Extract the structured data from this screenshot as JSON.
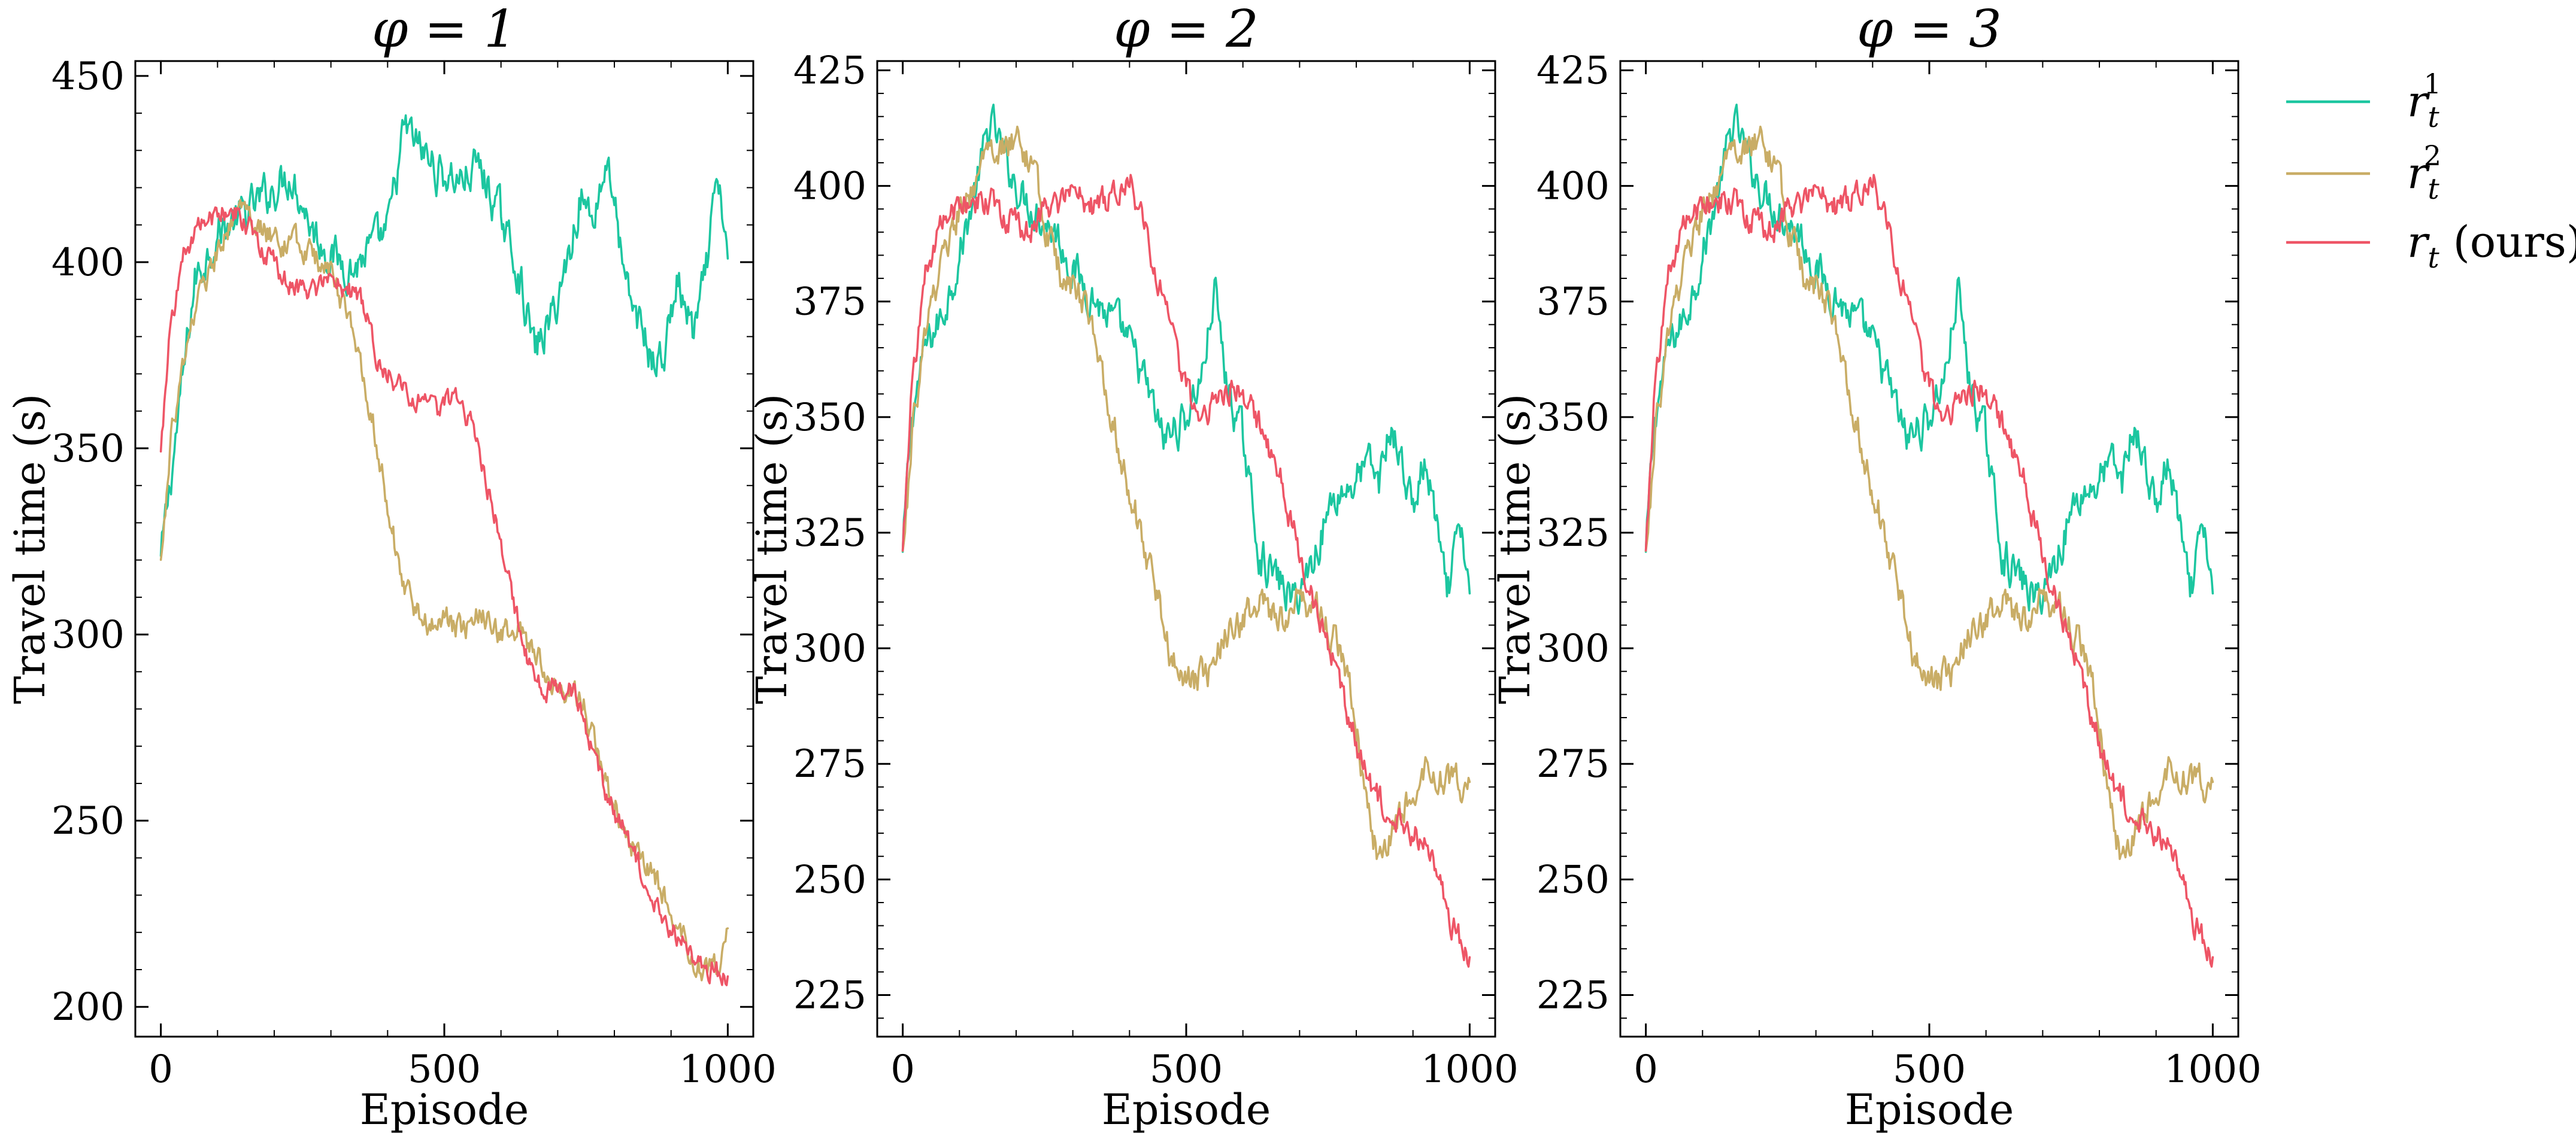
{
  "chart_data": [
    {
      "type": "line",
      "title": "φ = 1",
      "xlabel": "Episode",
      "ylabel": "Travel time (s)",
      "xlim": [
        -45,
        1045
      ],
      "ylim": [
        192,
        454
      ],
      "xticks": [
        0,
        500,
        1000
      ],
      "yticks": [
        200,
        250,
        300,
        350,
        400,
        450
      ],
      "x_minor_step": 100,
      "y_minor_step": 10,
      "series": [
        {
          "name": "r_t^1",
          "noise": 4.5,
          "x": [
            0,
            20,
            60,
            100,
            150,
            200,
            230,
            270,
            300,
            320,
            340,
            360,
            400,
            430,
            460,
            490,
            530,
            560,
            600,
            630,
            660,
            690,
            720,
            740,
            760,
            790,
            820,
            850,
            870,
            890,
            910,
            940,
            960,
            980,
            1000
          ],
          "values": [
            320,
            345,
            395,
            408,
            413,
            420,
            424,
            408,
            402,
            400,
            398,
            402,
            408,
            436,
            430,
            424,
            422,
            426,
            412,
            398,
            376,
            385,
            402,
            418,
            412,
            428,
            392,
            382,
            372,
            376,
            395,
            380,
            395,
            420,
            405
          ]
        },
        {
          "name": "r_t^2",
          "noise": 3,
          "x": [
            0,
            20,
            60,
            100,
            130,
            160,
            200,
            250,
            300,
            330,
            360,
            390,
            420,
            450,
            480,
            500,
            530,
            560,
            600,
            640,
            660,
            690,
            720,
            750,
            780,
            810,
            840,
            870,
            900,
            930,
            960,
            980,
            1000
          ],
          "values": [
            319,
            355,
            388,
            403,
            414,
            410,
            406,
            404,
            397,
            385,
            368,
            345,
            318,
            305,
            303,
            304,
            301,
            305,
            300,
            300,
            295,
            286,
            285,
            280,
            260,
            252,
            240,
            235,
            225,
            215,
            210,
            210,
            220
          ]
        },
        {
          "name": "r_t (ours)",
          "noise": 2.5,
          "x": [
            0,
            15,
            40,
            70,
            100,
            130,
            160,
            190,
            220,
            260,
            300,
            330,
            360,
            380,
            400,
            430,
            460,
            490,
            520,
            550,
            580,
            610,
            640,
            670,
            700,
            730,
            760,
            790,
            820,
            850,
            880,
            910,
            940,
            970,
            1000
          ],
          "values": [
            348,
            380,
            401,
            410,
            413,
            414,
            408,
            402,
            395,
            392,
            394,
            393,
            388,
            375,
            370,
            366,
            362,
            360,
            365,
            355,
            338,
            318,
            296,
            285,
            286,
            285,
            270,
            255,
            247,
            235,
            225,
            220,
            212,
            210,
            207
          ]
        }
      ]
    },
    {
      "type": "line",
      "title": "φ = 2",
      "xlabel": "Episode",
      "ylabel": "Travel time (s)",
      "xlim": [
        -45,
        1045
      ],
      "ylim": [
        216,
        427
      ],
      "xticks": [
        0,
        500,
        1000
      ],
      "yticks": [
        225,
        250,
        275,
        300,
        325,
        350,
        375,
        400,
        425
      ],
      "x_minor_step": 100,
      "y_minor_step": 5,
      "series": [
        {
          "name": "r_t^1",
          "noise": 3.5,
          "x": [
            0,
            15,
            40,
            70,
            100,
            130,
            155,
            180,
            210,
            240,
            270,
            300,
            330,
            360,
            390,
            420,
            460,
            500,
            530,
            550,
            570,
            600,
            630,
            660,
            690,
            720,
            760,
            790,
            820,
            840,
            860,
            880,
            900,
            920,
            940,
            960,
            980,
            1000
          ],
          "values": [
            320,
            350,
            365,
            372,
            385,
            400,
            414,
            406,
            398,
            394,
            390,
            382,
            377,
            372,
            368,
            360,
            345,
            350,
            360,
            378,
            358,
            345,
            320,
            315,
            310,
            318,
            333,
            335,
            340,
            336,
            348,
            340,
            330,
            340,
            328,
            310,
            325,
            315
          ]
        },
        {
          "name": "r_t^2",
          "noise": 3,
          "x": [
            0,
            20,
            50,
            80,
            110,
            150,
            180,
            210,
            230,
            250,
            280,
            320,
            350,
            380,
            410,
            440,
            470,
            500,
            540,
            570,
            600,
            640,
            670,
            700,
            730,
            760,
            790,
            820,
            840,
            870,
            900,
            930,
            960,
            990,
            1000
          ],
          "values": [
            320,
            350,
            375,
            388,
            398,
            405,
            408,
            410,
            403,
            392,
            380,
            375,
            360,
            345,
            330,
            315,
            300,
            292,
            295,
            302,
            306,
            310,
            305,
            312,
            308,
            302,
            290,
            268,
            252,
            262,
            268,
            274,
            272,
            270,
            270
          ]
        },
        {
          "name": "r_t (ours)",
          "noise": 2.5,
          "x": [
            0,
            15,
            40,
            70,
            100,
            130,
            160,
            190,
            220,
            250,
            280,
            310,
            340,
            370,
            400,
            430,
            460,
            490,
            520,
            550,
            580,
            610,
            640,
            670,
            700,
            730,
            760,
            790,
            820,
            850,
            880,
            910,
            940,
            970,
            1000
          ],
          "values": [
            320,
            355,
            380,
            392,
            396,
            397,
            396,
            393,
            390,
            395,
            396,
            398,
            395,
            398,
            402,
            390,
            375,
            360,
            350,
            352,
            357,
            354,
            345,
            335,
            320,
            308,
            298,
            283,
            272,
            265,
            262,
            260,
            252,
            240,
            232
          ]
        }
      ]
    },
    {
      "type": "line",
      "title": "φ = 3",
      "xlabel": "Episode",
      "ylabel": "Travel time (s)",
      "xlim": [
        -45,
        1045
      ],
      "ylim": [
        216,
        427
      ],
      "xticks": [
        0,
        500,
        1000
      ],
      "yticks": [
        225,
        250,
        275,
        300,
        325,
        350,
        375,
        400,
        425
      ],
      "x_minor_step": 100,
      "y_minor_step": 5,
      "series": [
        {
          "name": "r_t^1",
          "noise": 3.5,
          "x": [
            0,
            15,
            40,
            70,
            100,
            130,
            155,
            180,
            210,
            240,
            270,
            300,
            330,
            360,
            390,
            420,
            460,
            500,
            530,
            550,
            570,
            600,
            630,
            660,
            690,
            720,
            760,
            790,
            820,
            840,
            860,
            880,
            900,
            920,
            940,
            960,
            980,
            1000
          ],
          "values": [
            320,
            350,
            365,
            372,
            385,
            400,
            414,
            406,
            398,
            394,
            390,
            382,
            377,
            372,
            368,
            360,
            345,
            350,
            360,
            378,
            358,
            345,
            320,
            315,
            310,
            318,
            333,
            335,
            340,
            336,
            348,
            340,
            330,
            340,
            328,
            310,
            325,
            315
          ]
        },
        {
          "name": "r_t^2",
          "noise": 3,
          "x": [
            0,
            20,
            50,
            80,
            110,
            150,
            180,
            210,
            230,
            250,
            280,
            320,
            350,
            380,
            410,
            440,
            470,
            500,
            540,
            570,
            600,
            640,
            670,
            700,
            730,
            760,
            790,
            820,
            840,
            870,
            900,
            930,
            960,
            990,
            1000
          ],
          "values": [
            320,
            350,
            375,
            388,
            398,
            405,
            408,
            410,
            403,
            392,
            380,
            375,
            360,
            345,
            330,
            315,
            300,
            292,
            295,
            302,
            306,
            310,
            305,
            312,
            308,
            302,
            290,
            268,
            252,
            262,
            268,
            274,
            272,
            270,
            270
          ]
        },
        {
          "name": "r_t (ours)",
          "noise": 2.5,
          "x": [
            0,
            15,
            40,
            70,
            100,
            130,
            160,
            190,
            220,
            250,
            280,
            310,
            340,
            370,
            400,
            430,
            460,
            490,
            520,
            550,
            580,
            610,
            640,
            670,
            700,
            730,
            760,
            790,
            820,
            850,
            880,
            910,
            940,
            970,
            1000
          ],
          "values": [
            320,
            355,
            380,
            392,
            396,
            397,
            396,
            393,
            390,
            395,
            396,
            398,
            395,
            398,
            402,
            390,
            375,
            360,
            350,
            352,
            357,
            354,
            345,
            335,
            320,
            308,
            298,
            283,
            272,
            265,
            262,
            260,
            252,
            240,
            232
          ]
        }
      ]
    }
  ],
  "legend": {
    "placement": "right",
    "entries": [
      {
        "label": "r",
        "sub": "t",
        "sup": "1",
        "suffix": "",
        "color": "#1cc6a0"
      },
      {
        "label": "r",
        "sub": "t",
        "sup": "2",
        "suffix": "",
        "color": "#c9ad66"
      },
      {
        "label": "r",
        "sub": "t",
        "sup": "",
        "suffix": " (ours)",
        "color": "#ee5566"
      }
    ]
  },
  "colors": {
    "series": [
      "#1cc6a0",
      "#c9ad66",
      "#ee5566"
    ]
  }
}
